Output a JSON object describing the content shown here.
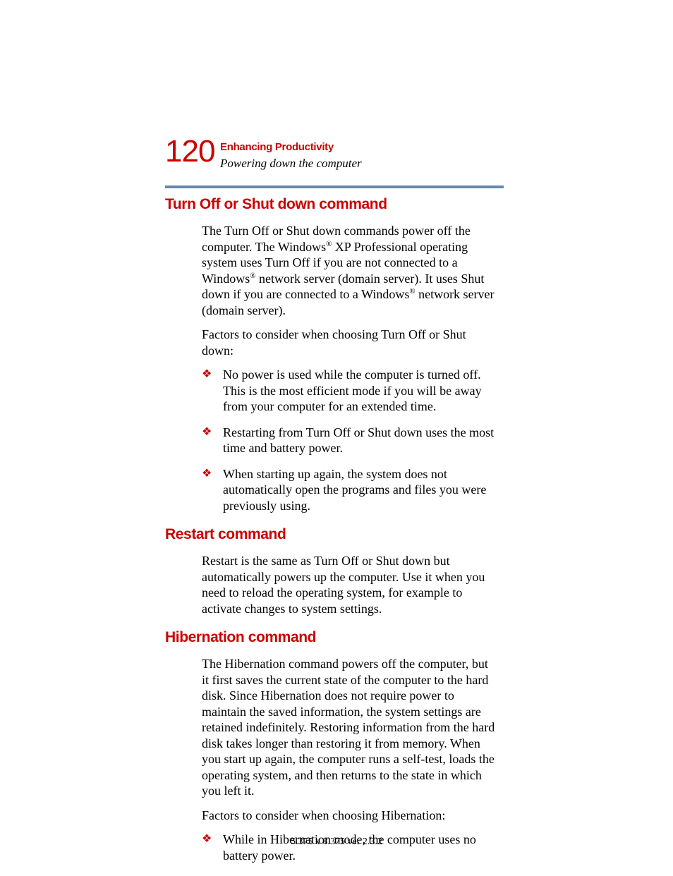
{
  "colors": {
    "accent": "#cc0000",
    "rule": "#6688aa",
    "text": "#000000",
    "background": "#ffffff"
  },
  "typography": {
    "heading_font": "Arial Narrow",
    "body_font": "Times New Roman",
    "page_number_size_pt": 33,
    "h2_size_pt": 16,
    "body_size_pt": 13
  },
  "header": {
    "page_number": "120",
    "chapter": "Enhancing Productivity",
    "section": "Powering down the computer"
  },
  "sections": [
    {
      "key": "turnoff",
      "heading": "Turn Off or Shut down command",
      "paragraphs": [
        "__P0__",
        " Factors to consider when choosing Turn Off or Shut down:"
      ],
      "bullets": [
        "No power is used while the computer is turned off. This is the most efficient mode if you will be away from your computer for an extended time.",
        "Restarting from Turn Off or Shut down uses the most time and battery power.",
        "When starting up again, the system does not automatically open the programs and files you were previously using."
      ]
    },
    {
      "key": "restart",
      "heading": "Restart command",
      "paragraphs": [
        "Restart is the same as Turn Off or Shut down but automatically powers up the computer. Use it when you need to reload the operating system, for example to activate changes to system settings."
      ],
      "bullets": []
    },
    {
      "key": "hibernation",
      "heading": "Hibernation command",
      "paragraphs": [
        "The Hibernation command powers off the computer, but it first saves the current state of the computer to the hard disk. Since Hibernation does not require power to maintain the saved information, the system settings are retained indefinitely. Restoring information from the hard disk takes longer than restoring it from memory. When you start up again, the computer runs a self-test, loads the operating system, and then returns to the state in which you left it.",
        "Factors to consider when choosing Hibernation:"
      ],
      "bullets": [
        "While in Hibernation mode, the computer uses no battery power."
      ]
    }
  ],
  "turnoff_para0_parts": {
    "a": "The Turn Off or Shut down commands power off the computer. The Windows",
    "b": " XP Professional operating system uses Turn Off if you are not connected to a Windows",
    "c": " network server (domain server). It uses Shut down if you are connected to a Windows",
    "d": " network server (domain server)."
  },
  "registered": "®",
  "bullet_glyph": "❖",
  "footer": "5.375 x 8.375 ver 2.3.2"
}
